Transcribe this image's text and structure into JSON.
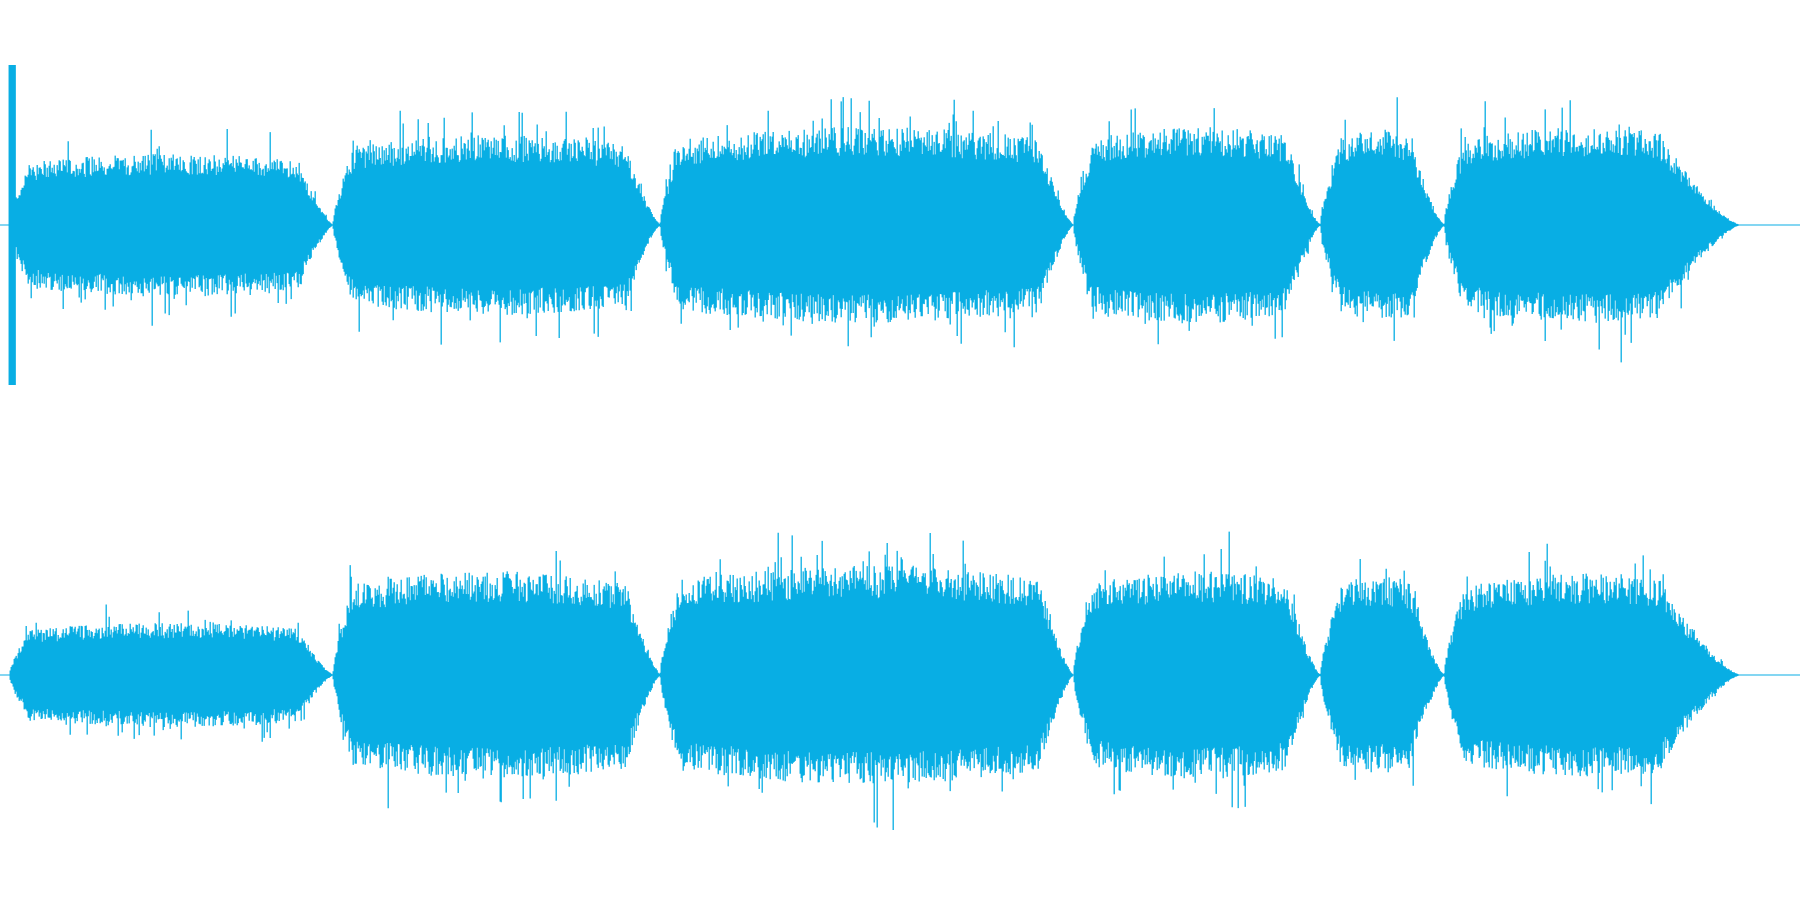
{
  "waveform": {
    "color": "#08aee4",
    "channels": 2
  }
}
